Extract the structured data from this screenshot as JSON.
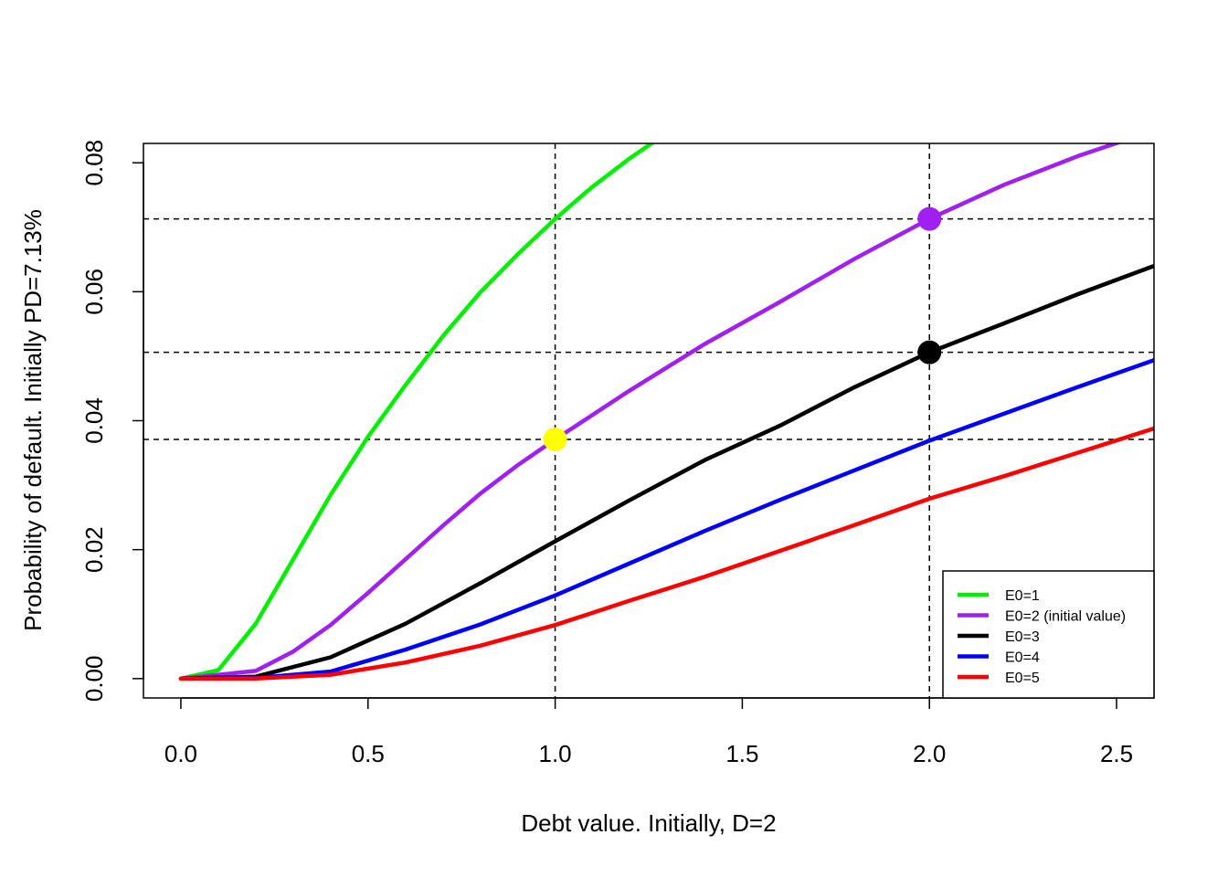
{
  "chart_data": {
    "type": "line",
    "title": "",
    "xlabel": "Debt value. Initially, D=2",
    "ylabel": "Probability of default. Initially PD=7.13%",
    "xlim": [
      -0.1,
      2.6
    ],
    "ylim": [
      -0.003,
      0.083
    ],
    "x_ticks": [
      "0.0",
      "0.5",
      "1.0",
      "1.5",
      "2.0",
      "2.5"
    ],
    "y_ticks": [
      "0.00",
      "0.02",
      "0.04",
      "0.06",
      "0.08"
    ],
    "grid": false,
    "legend_position": "bottom-right",
    "series": [
      {
        "name": "E0=1",
        "color": "#00ee00",
        "x": [
          0,
          0.1,
          0.2,
          0.3,
          0.4,
          0.5,
          0.6,
          0.7,
          0.8,
          0.9,
          1.0,
          1.1,
          1.2,
          1.3
        ],
        "values": [
          0.0,
          0.0013,
          0.0085,
          0.0185,
          0.0285,
          0.0375,
          0.0455,
          0.0531,
          0.0599,
          0.0658,
          0.0713,
          0.0763,
          0.0807,
          0.0847
        ]
      },
      {
        "name": "E0=2 (initial value)",
        "color": "#a020f0",
        "x": [
          0,
          0.2,
          0.3,
          0.4,
          0.5,
          0.6,
          0.7,
          0.8,
          0.9,
          1.0,
          1.2,
          1.4,
          1.6,
          1.8,
          2.0,
          2.2,
          2.4,
          2.6
        ],
        "values": [
          0.0,
          0.0012,
          0.0042,
          0.0083,
          0.0133,
          0.0185,
          0.0237,
          0.0287,
          0.0331,
          0.0371,
          0.0447,
          0.0519,
          0.0584,
          0.0651,
          0.0713,
          0.0766,
          0.0811,
          0.085
        ]
      },
      {
        "name": "E0=3",
        "color": "#000000",
        "x": [
          0,
          0.2,
          0.4,
          0.6,
          0.8,
          1.0,
          1.2,
          1.4,
          1.6,
          1.8,
          2.0,
          2.2,
          2.4,
          2.6
        ],
        "values": [
          0.0,
          0.0003,
          0.0033,
          0.0085,
          0.0148,
          0.0213,
          0.0277,
          0.0339,
          0.0392,
          0.0452,
          0.0506,
          0.0551,
          0.0597,
          0.064
        ]
      },
      {
        "name": "E0=4",
        "color": "#0000ff",
        "x": [
          0,
          0.2,
          0.4,
          0.6,
          0.8,
          1.0,
          1.2,
          1.4,
          1.6,
          1.8,
          2.0,
          2.2,
          2.4,
          2.6
        ],
        "values": [
          0.0,
          0.0001,
          0.0011,
          0.0045,
          0.0084,
          0.0129,
          0.0179,
          0.0229,
          0.0277,
          0.0323,
          0.0369,
          0.0411,
          0.0453,
          0.0494
        ]
      },
      {
        "name": "E0=5",
        "color": "#ff0000",
        "x": [
          0,
          0.2,
          0.4,
          0.6,
          0.8,
          1.0,
          1.2,
          1.4,
          1.6,
          1.8,
          2.0,
          2.2,
          2.4,
          2.6
        ],
        "values": [
          0.0,
          0.0,
          0.0006,
          0.0025,
          0.0051,
          0.0083,
          0.0121,
          0.0158,
          0.0198,
          0.0238,
          0.0279,
          0.0314,
          0.0351,
          0.0388
        ]
      }
    ],
    "reference_lines": {
      "vertical_x": [
        1.0,
        2.0
      ],
      "horizontal_y": [
        0.0713,
        0.0506,
        0.0371
      ]
    },
    "highlight_points": [
      {
        "x": 1.0,
        "y": 0.0371,
        "color": "#ffff00"
      },
      {
        "x": 2.0,
        "y": 0.0713,
        "color": "#a020f0"
      },
      {
        "x": 2.0,
        "y": 0.0506,
        "color": "#000000"
      }
    ]
  }
}
